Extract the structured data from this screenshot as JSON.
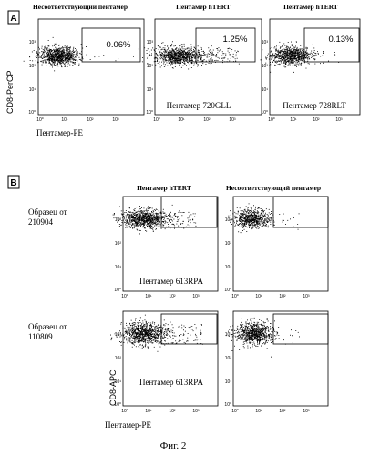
{
  "figure": {
    "caption": "Фиг. 2"
  },
  "panel_a": {
    "letter": "A",
    "y_axis_label": "CD8-PerCP",
    "x_axis_label": "Пентамер-PE",
    "tick_labels": [
      "10⁰",
      "10¹",
      "10²",
      "10³"
    ],
    "plots": [
      {
        "header": "Несоответствующий пентамер",
        "percent": "0.06%",
        "inner_label": ""
      },
      {
        "header": "Пентамер hTERT",
        "percent": "1.25%",
        "inner_label": "Пентамер 720GLL"
      },
      {
        "header": "Пентамер hTERT",
        "percent": "0.13%",
        "inner_label": "Пентамер 728RLT"
      }
    ]
  },
  "panel_b": {
    "letter": "B",
    "y_axis_label": "CD8-APC",
    "x_axis_label": "Пентамер-PE",
    "tick_labels": [
      "10⁰",
      "10¹",
      "10²",
      "10³"
    ],
    "column_headers": [
      "Пентамер hTERT",
      "Несоответствующий пентамер"
    ],
    "rows": [
      {
        "sample_line1": "Образец от",
        "sample_line2": "210904",
        "inner_label": "Пентамер 613RPA"
      },
      {
        "sample_line1": "Образец от",
        "sample_line2": "110809",
        "inner_label": "Пентамер 613RPA"
      }
    ]
  },
  "chart_data": [
    {
      "type": "scatter",
      "panel": "A",
      "title": "Несоответствующий пентамер",
      "xlabel": "Пентамер-PE",
      "ylabel": "CD8-PerCP",
      "xscale": "log",
      "yscale": "log",
      "xlim": [
        1,
        10000
      ],
      "ylim": [
        1,
        10000
      ],
      "gate_percent": 0.06
    },
    {
      "type": "scatter",
      "panel": "A",
      "title": "Пентамер hTERT",
      "annotation": "Пентамер 720GLL",
      "xlabel": "Пентамер-PE",
      "ylabel": "CD8-PerCP",
      "xscale": "log",
      "yscale": "log",
      "xlim": [
        1,
        10000
      ],
      "ylim": [
        1,
        10000
      ],
      "gate_percent": 1.25
    },
    {
      "type": "scatter",
      "panel": "A",
      "title": "Пентамер hTERT",
      "annotation": "Пентамер 728RLT",
      "xlabel": "Пентамер-PE",
      "ylabel": "CD8-PerCP",
      "xscale": "log",
      "yscale": "log",
      "xlim": [
        1,
        10000
      ],
      "ylim": [
        1,
        10000
      ],
      "gate_percent": 0.13
    },
    {
      "type": "scatter",
      "panel": "B",
      "title": "Пентамер hTERT",
      "row": "Образец от 210904",
      "annotation": "Пентамер 613RPA",
      "xscale": "log",
      "yscale": "log",
      "xlim": [
        1,
        10000
      ],
      "ylim": [
        1,
        10000
      ]
    },
    {
      "type": "scatter",
      "panel": "B",
      "title": "Несоответствующий пентамер",
      "row": "Образец от 210904",
      "xscale": "log",
      "yscale": "log",
      "xlim": [
        1,
        10000
      ],
      "ylim": [
        1,
        10000
      ]
    },
    {
      "type": "scatter",
      "panel": "B",
      "title": "Пентамер hTERT",
      "row": "Образец от 110809",
      "annotation": "Пентамер 613RPA",
      "xscale": "log",
      "yscale": "log",
      "xlim": [
        1,
        10000
      ],
      "ylim": [
        1,
        10000
      ]
    },
    {
      "type": "scatter",
      "panel": "B",
      "title": "Несоответствующий пентамер",
      "row": "Образец от 110809",
      "xscale": "log",
      "yscale": "log",
      "xlim": [
        1,
        10000
      ],
      "ylim": [
        1,
        10000
      ]
    }
  ]
}
